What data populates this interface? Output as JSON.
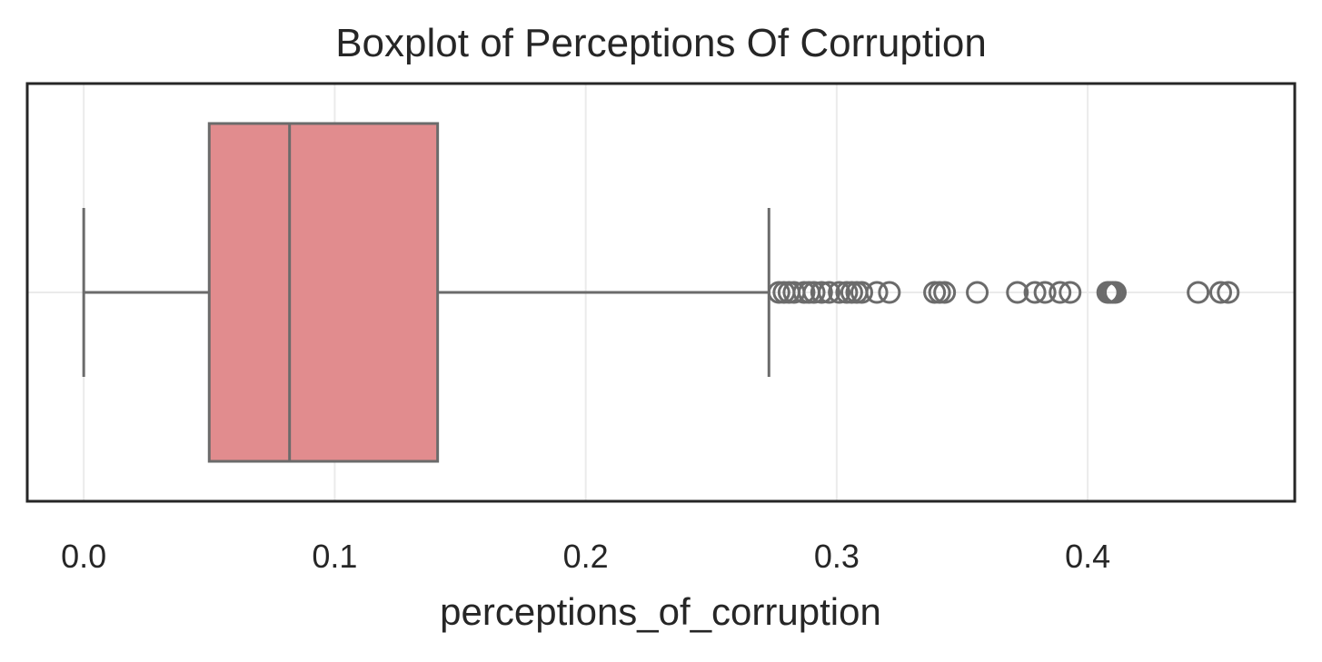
{
  "chart_data": {
    "type": "boxplot",
    "title": "Boxplot of Perceptions Of Corruption",
    "xlabel": "perceptions_of_corruption",
    "ylabel": "",
    "xlim": [
      -0.0225,
      0.4825
    ],
    "xticks": [
      0.0,
      0.1,
      0.2,
      0.3,
      0.4
    ],
    "xtick_labels": [
      "0.0",
      "0.1",
      "0.2",
      "0.3",
      "0.4"
    ],
    "grid": true,
    "box": {
      "whisker_low": 0.0,
      "q1": 0.05,
      "median": 0.082,
      "q3": 0.141,
      "whisker_high": 0.273
    },
    "outliers": [
      0.277,
      0.279,
      0.281,
      0.283,
      0.287,
      0.289,
      0.291,
      0.294,
      0.297,
      0.301,
      0.304,
      0.306,
      0.308,
      0.31,
      0.316,
      0.321,
      0.339,
      0.341,
      0.343,
      0.356,
      0.372,
      0.379,
      0.383,
      0.389,
      0.393,
      0.408,
      0.409,
      0.41,
      0.411,
      0.444,
      0.453,
      0.456
    ],
    "colors": {
      "box_fill": "#e18c8e",
      "box_edge": "#6b6b6b",
      "grid": "#ebebeb",
      "frame": "#262626"
    }
  }
}
